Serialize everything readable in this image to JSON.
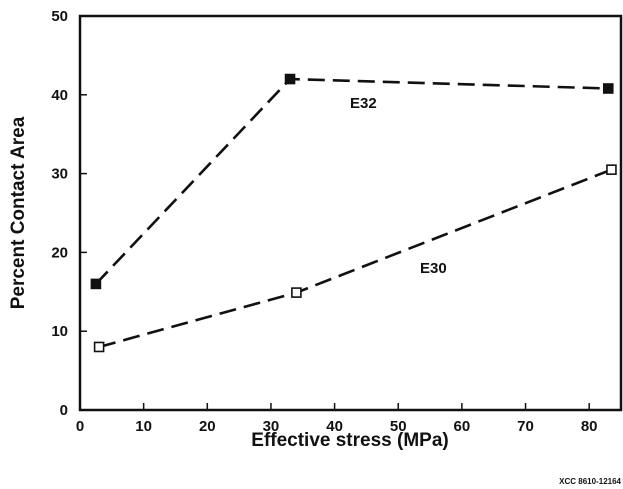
{
  "chart_data": {
    "type": "line",
    "xlabel": "Effective stress (MPa)",
    "ylabel": "Percent Contact Area",
    "xlim": [
      0,
      85
    ],
    "ylim": [
      0,
      50
    ],
    "xticks": [
      0,
      10,
      20,
      30,
      40,
      50,
      60,
      70,
      80
    ],
    "yticks": [
      0,
      10,
      20,
      30,
      40,
      50
    ],
    "grid": false,
    "legend": "none",
    "series": [
      {
        "name": "E32",
        "marker": "filled-square",
        "line_style": "dashed",
        "x": [
          2.5,
          33,
          83
        ],
        "y": [
          16,
          42,
          40.8
        ]
      },
      {
        "name": "E30",
        "marker": "open-square",
        "line_style": "dashed",
        "x": [
          3,
          34,
          83.5
        ],
        "y": [
          8,
          14.9,
          30.5
        ]
      }
    ],
    "footnote": "XCC 8610-12164"
  }
}
